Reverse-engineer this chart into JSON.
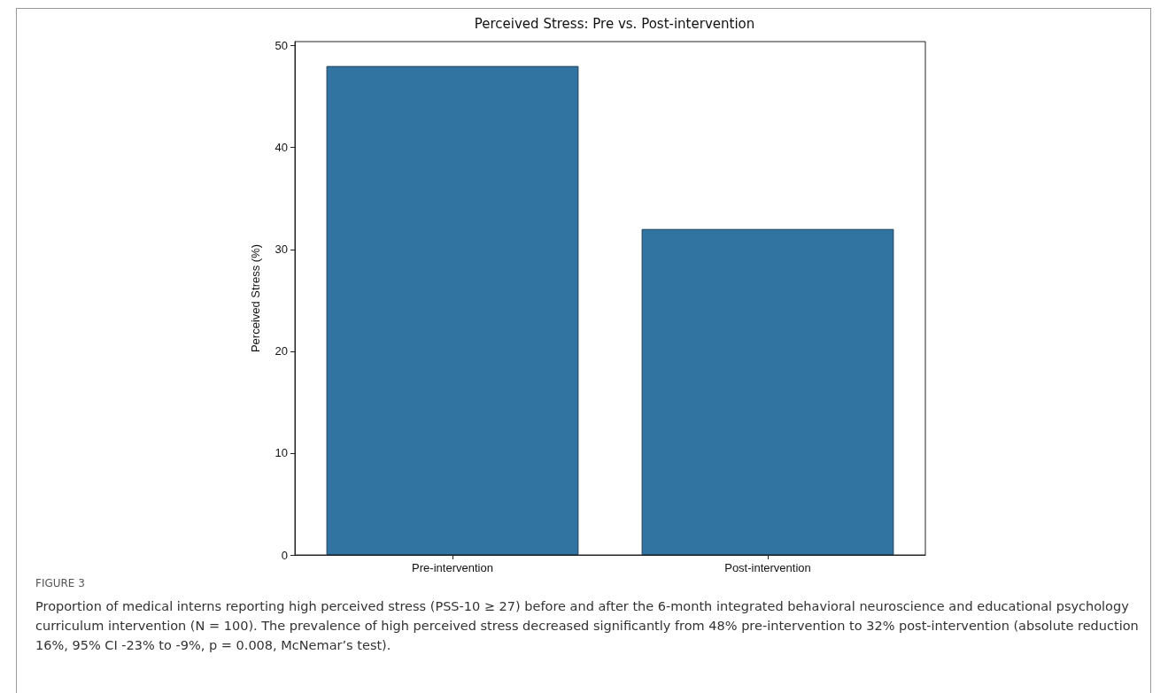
{
  "chart_data": {
    "type": "bar",
    "title": "Perceived Stress: Pre vs. Post-intervention",
    "ylabel": "Perceived Stress (%)",
    "categories": [
      "Pre-intervention",
      "Post-intervention"
    ],
    "values": [
      48,
      32
    ],
    "color": "#3274a1",
    "ylim": [
      0,
      50.4
    ],
    "yticks": [
      0,
      10,
      20,
      30,
      40,
      50
    ],
    "annotations": [
      "FIGURE 3",
      "Proportion of medical interns reporting high perceived stress (PSS-10 ≥ 27) before and after the 6-month integrated behavioral neuroscience and educational psychology curriculum intervention (N = 100). The prevalence of high perceived stress decreased significantly from 48% pre-intervention to 32% post-intervention (absolute reduction 16%, 95% CI -23% to -9%, p = 0.008, McNemar’s test)."
    ]
  }
}
